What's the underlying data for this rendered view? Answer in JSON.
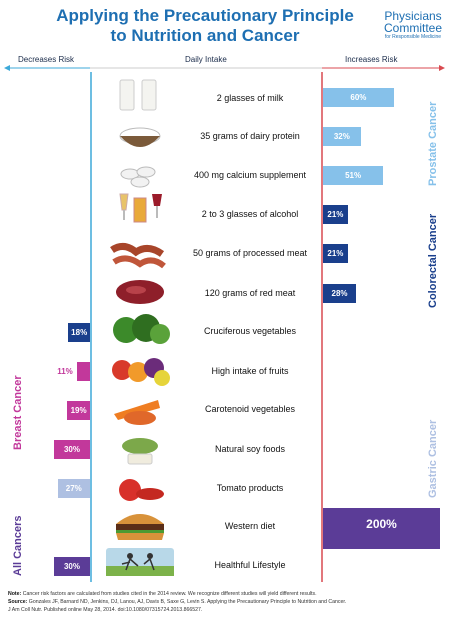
{
  "header": {
    "title_line1": "Applying the Precautionary Principle",
    "title_line2": "to Nutrition and Cancer",
    "logo_line1": "Physicians",
    "logo_line2": "Committee",
    "logo_tagline": "for Responsible Medicine"
  },
  "columns": {
    "left": "Decreases Risk",
    "middle": "Daily Intake",
    "right": "Increases Risk"
  },
  "groups": {
    "prostate": "Prostate Cancer",
    "colorectal": "Colorectal Cancer",
    "gastric": "Gastric Cancer",
    "breast": "Breast Cancer",
    "all": "All Cancers"
  },
  "colors": {
    "prostate": "#86c1ea",
    "colorectal": "#1a3f8c",
    "breast": "#c2389b",
    "gastric": "#aec0e2",
    "all": "#5b3c97",
    "axis_left": "#3da9d9",
    "axis_right": "#d94a50",
    "title": "#1e6fb2"
  },
  "chart_data": {
    "type": "bar",
    "categories": [
      "2 glasses of milk",
      "35 grams of dairy protein",
      "400 mg calcium supplement",
      "2 to 3 glasses of alcohol",
      "50 grams of processed meat",
      "120 grams of red meat",
      "Cruciferous vegetables",
      "High intake of fruits",
      "Carotenoid vegetables",
      "Natural soy foods",
      "Tomato products",
      "Western diet",
      "Healthful Lifestyle"
    ],
    "values": [
      60,
      32,
      51,
      21,
      21,
      28,
      -18,
      -11,
      -19,
      -30,
      -27,
      200,
      -30
    ],
    "labels": [
      "60%",
      "32%",
      "51%",
      "21%",
      "21%",
      "28%",
      "18%",
      "11%",
      "19%",
      "30%",
      "27%",
      "200%",
      "30%"
    ],
    "direction": [
      "increase",
      "increase",
      "increase",
      "increase",
      "increase",
      "increase",
      "decrease",
      "decrease",
      "decrease",
      "decrease",
      "decrease",
      "increase",
      "decrease"
    ],
    "cancer_group": [
      "prostate",
      "prostate",
      "prostate",
      "colorectal",
      "colorectal",
      "colorectal",
      "colorectal",
      "breast",
      "breast",
      "breast",
      "gastric",
      "all",
      "all"
    ],
    "unit": "%"
  },
  "footer": {
    "note_label": "Note:",
    "note": "Cancer risk factors are calculated from studies cited in the 2014 review. We recognize different studies will yield different results.",
    "source_label": "Source:",
    "source": "Gonzales JF, Barnard ND, Jenkins, DJ, Lanou, AJ, Davis B, Saxe G, Levin S. Applying the Precautionary Principle to Nutrition and Cancer.",
    "citation": "J Am Coll Nutr. Published online May 28, 2014. doi:10.1080/07315724.2013.866527."
  }
}
